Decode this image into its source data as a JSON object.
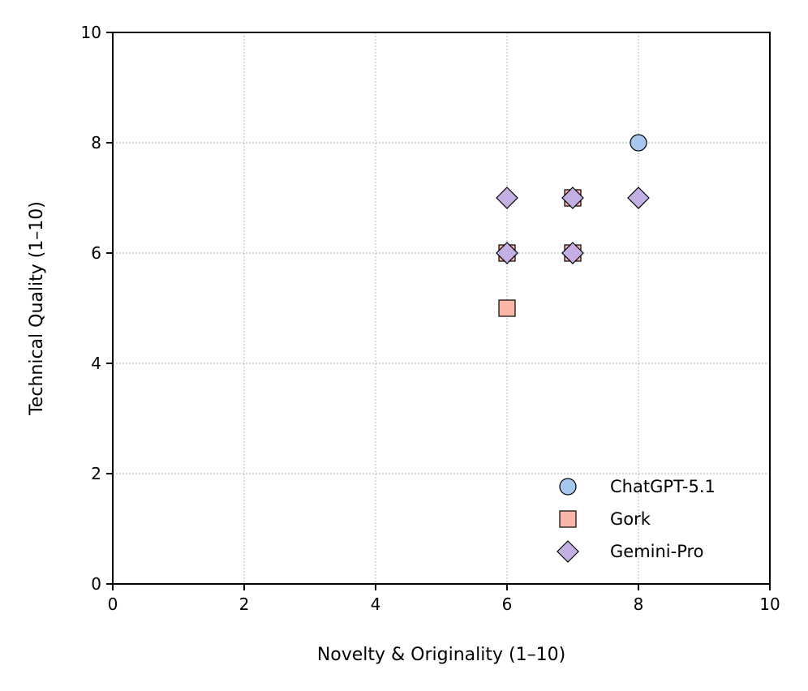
{
  "chart_data": {
    "type": "scatter",
    "xlabel": "Novelty & Originality (1–10)",
    "ylabel": "Technical Quality (1–10)",
    "xlim": [
      0,
      10
    ],
    "ylim": [
      0,
      10
    ],
    "xticks": [
      "0",
      "2",
      "4",
      "6",
      "8",
      "10"
    ],
    "yticks": [
      "0",
      "2",
      "4",
      "6",
      "8",
      "10"
    ],
    "grid": true,
    "legend_position": "bottom-right",
    "series": [
      {
        "name": "ChatGPT-5.1",
        "marker": "circle",
        "color": "#a7c7ee",
        "points": [
          [
            8,
            8
          ]
        ]
      },
      {
        "name": "Gork",
        "marker": "square",
        "color": "#f9b6a6",
        "points": [
          [
            6,
            6
          ],
          [
            7,
            7
          ],
          [
            7,
            6
          ],
          [
            6,
            5
          ]
        ]
      },
      {
        "name": "Gemini-Pro",
        "marker": "diamond",
        "color": "#c3afe3",
        "points": [
          [
            6,
            7
          ],
          [
            7,
            7
          ],
          [
            8,
            7
          ],
          [
            6,
            6
          ],
          [
            7,
            6
          ]
        ]
      }
    ]
  }
}
